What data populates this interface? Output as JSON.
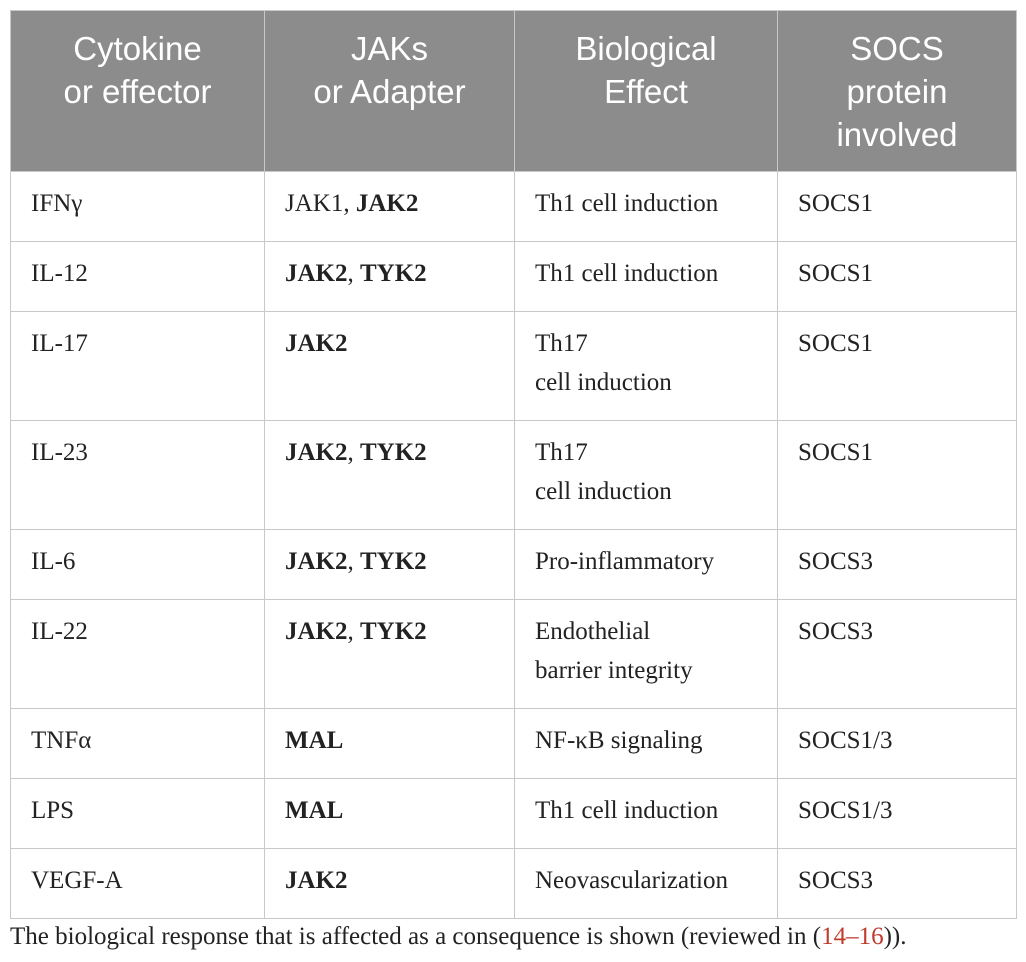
{
  "table": {
    "headers": [
      [
        "Cytokine",
        "or effector"
      ],
      [
        "JAKs",
        "or Adapter"
      ],
      [
        "Biological",
        "Effect"
      ],
      [
        "SOCS",
        "protein",
        "involved"
      ]
    ],
    "rows": [
      {
        "cytokine": "IFNγ",
        "jak_normal": "JAK1",
        "jak_sep": ", ",
        "jak_bold": "JAK2",
        "effect": [
          "Th1 cell induction"
        ],
        "socs": "SOCS1"
      },
      {
        "cytokine": "IL-12",
        "jak_b1": "JAK2",
        "jak_sep": ", ",
        "jak_b2": "TYK2",
        "effect": [
          "Th1 cell induction"
        ],
        "socs": "SOCS1"
      },
      {
        "cytokine": "IL-17",
        "jak_b1": "JAK2",
        "effect": [
          "Th17",
          "cell induction"
        ],
        "socs": "SOCS1"
      },
      {
        "cytokine": "IL-23",
        "jak_b1": "JAK2",
        "jak_sep": ", ",
        "jak_b2": "TYK2",
        "effect": [
          "Th17",
          "cell induction"
        ],
        "socs": "SOCS1"
      },
      {
        "cytokine": "IL-6",
        "jak_b1": "JAK2",
        "jak_sep": ", ",
        "jak_b2": "TYK2",
        "effect": [
          "Pro-inflammatory"
        ],
        "socs": "SOCS3"
      },
      {
        "cytokine": "IL-22",
        "jak_b1": "JAK2",
        "jak_sep": ", ",
        "jak_b2": "TYK2",
        "effect": [
          "Endothelial",
          "barrier integrity"
        ],
        "socs": "SOCS3"
      },
      {
        "cytokine": "TNFα",
        "jak_b1": "MAL",
        "effect": [
          "NF-κB signaling"
        ],
        "socs": "SOCS1/3"
      },
      {
        "cytokine": "LPS",
        "jak_b1": "MAL",
        "effect": [
          "Th1 cell induction"
        ],
        "socs": "SOCS1/3"
      },
      {
        "cytokine": "VEGF-A",
        "jak_b1": "JAK2",
        "effect": [
          "Neovascularization"
        ],
        "socs": "SOCS3"
      }
    ]
  },
  "footnote": {
    "text_before": "The biological response that is affected as a consequence is shown (reviewed in (",
    "ref": "14–16",
    "text_after": "))."
  }
}
